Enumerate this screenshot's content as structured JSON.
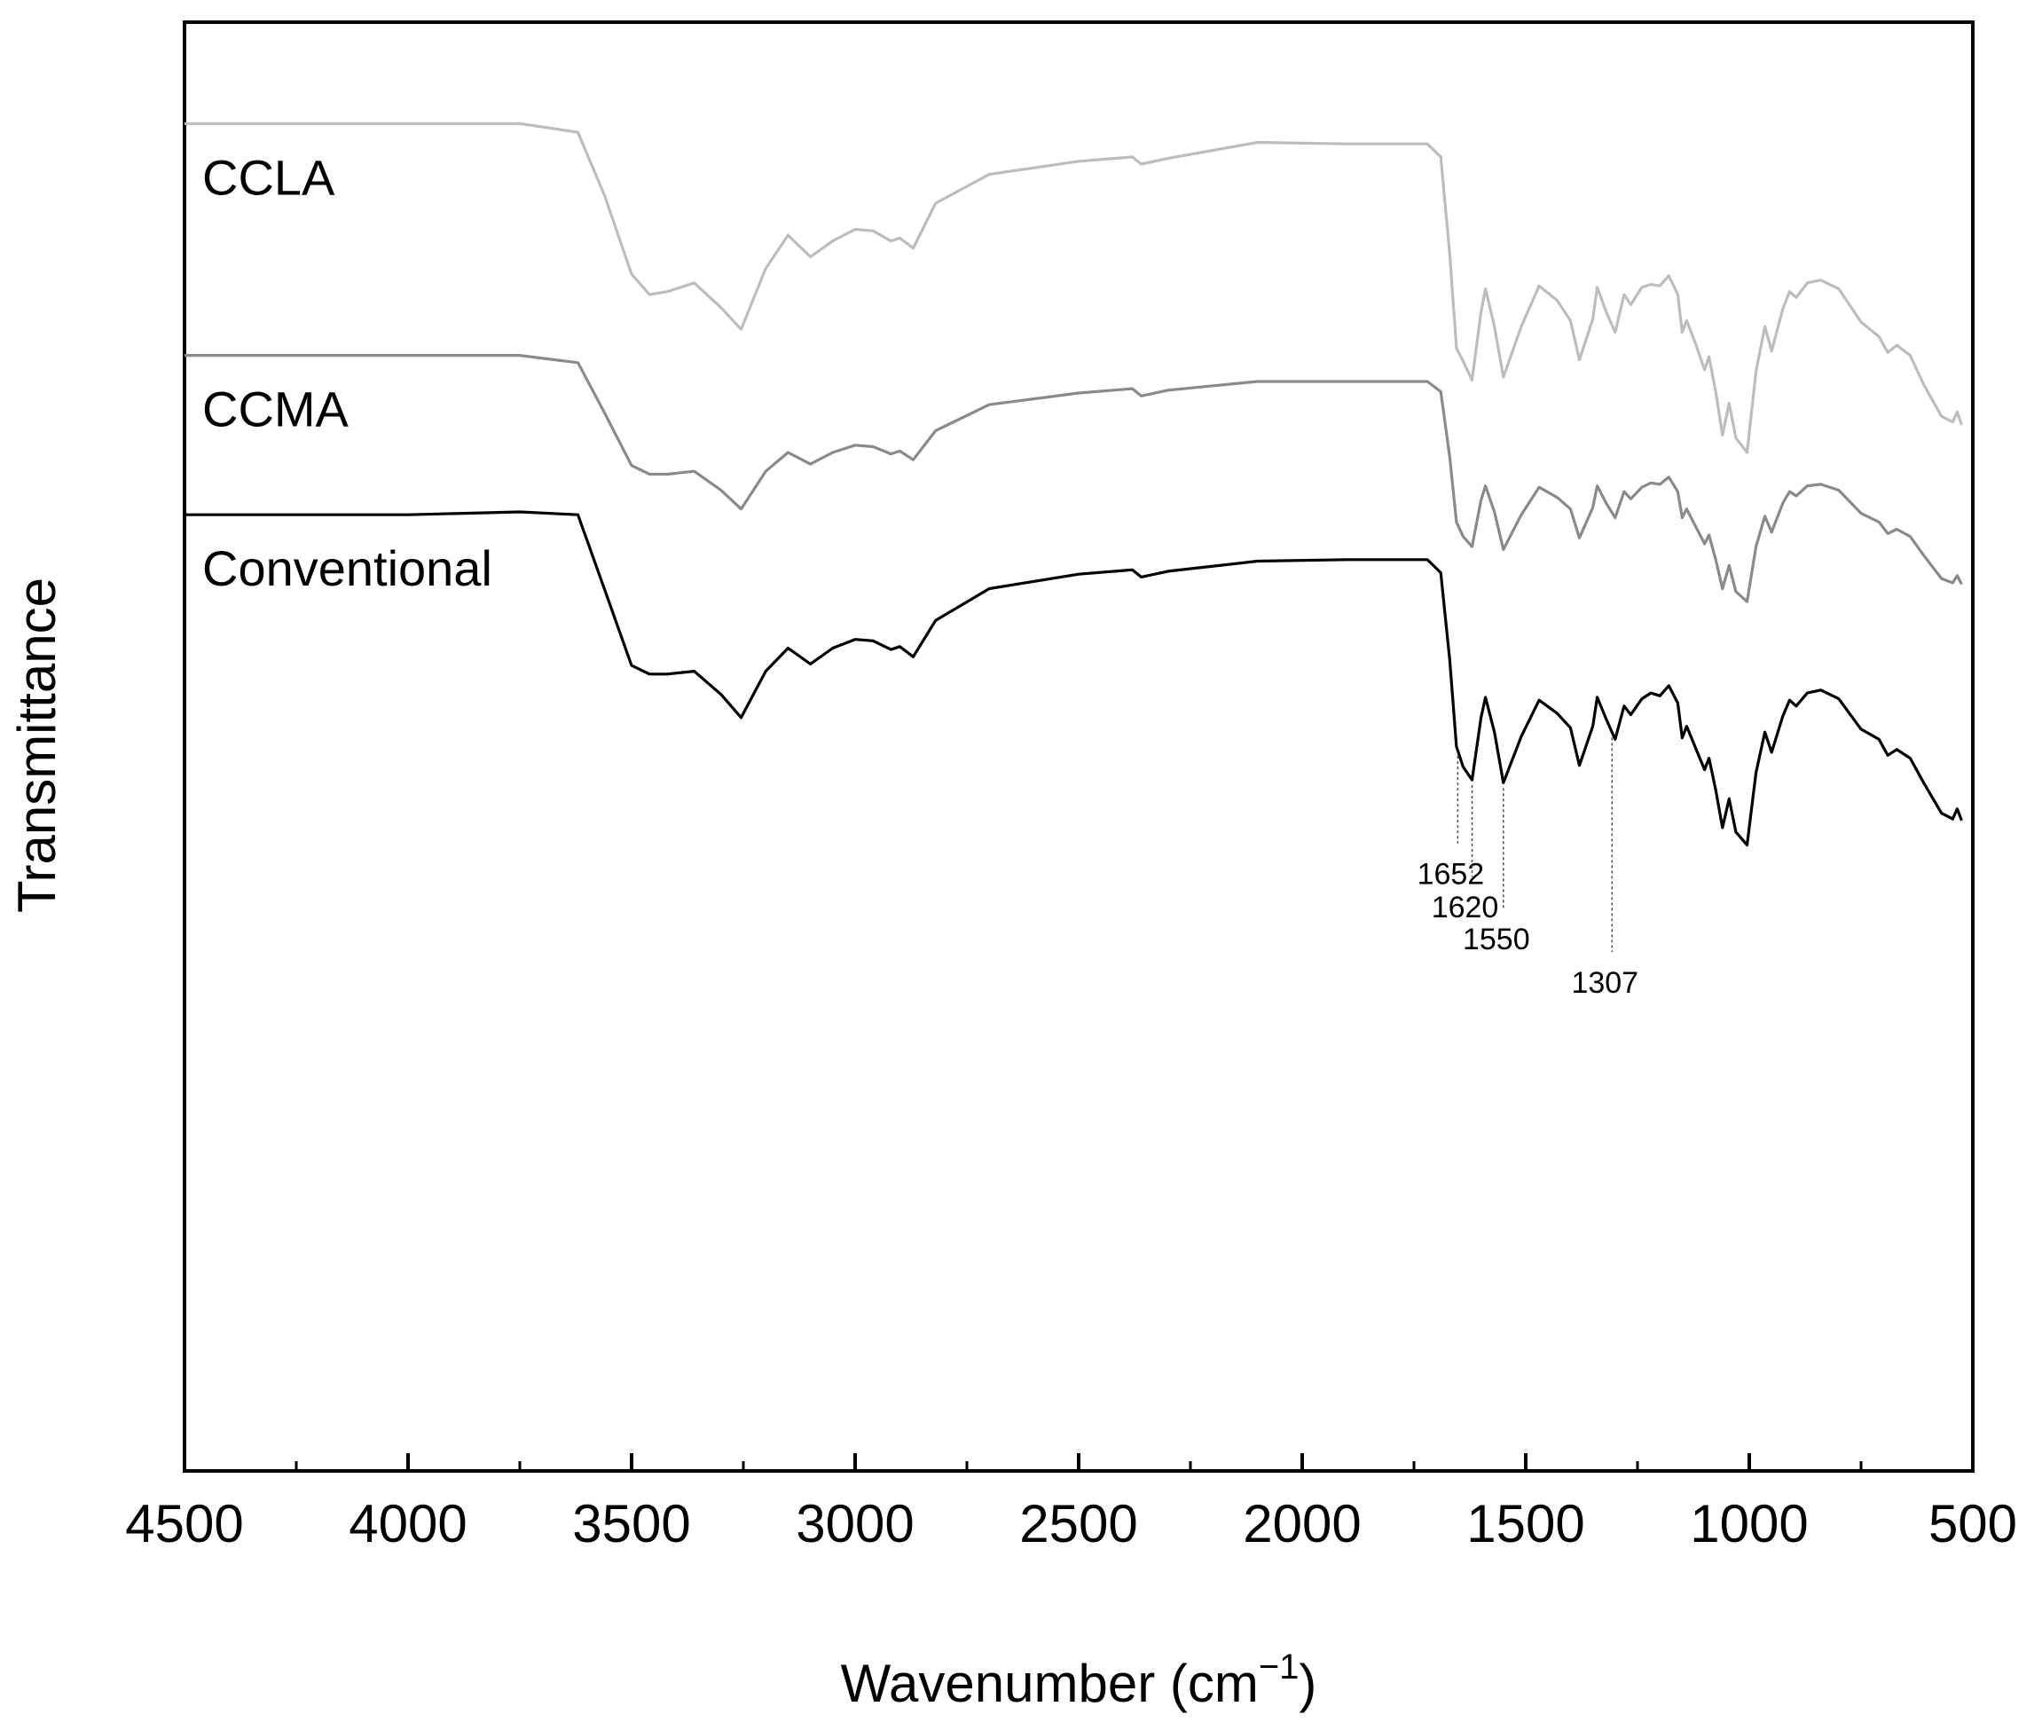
{
  "chart_data": {
    "type": "line",
    "xlabel": "Wavenumber (cm",
    "xlabel_superscript": "−1",
    "xlabel_close": ")",
    "ylabel": "Transmittance",
    "xlim": [
      4500,
      500
    ],
    "x_reversed": true,
    "x_ticks": [
      4500,
      4000,
      3500,
      3000,
      2500,
      2000,
      1500,
      1000,
      500
    ],
    "x_tick_labels": [
      "4500",
      "4000",
      "3500",
      "3000",
      "2500",
      "2000",
      "1500",
      "1000",
      "500"
    ],
    "y_ticks_shown": false,
    "grid": false,
    "legend": "inline labels",
    "ylim": [
      0,
      1
    ],
    "series": [
      {
        "name": "CCLA",
        "color": "#bdbdbd",
        "points": [
          [
            4500,
            0.93
          ],
          [
            4000,
            0.93
          ],
          [
            3750,
            0.93
          ],
          [
            3620,
            0.924
          ],
          [
            3560,
            0.88
          ],
          [
            3500,
            0.826
          ],
          [
            3460,
            0.812
          ],
          [
            3420,
            0.814
          ],
          [
            3360,
            0.82
          ],
          [
            3300,
            0.803
          ],
          [
            3255,
            0.788
          ],
          [
            3200,
            0.83
          ],
          [
            3150,
            0.853
          ],
          [
            3100,
            0.838
          ],
          [
            3050,
            0.849
          ],
          [
            3000,
            0.857
          ],
          [
            2960,
            0.856
          ],
          [
            2920,
            0.849
          ],
          [
            2900,
            0.851
          ],
          [
            2870,
            0.844
          ],
          [
            2820,
            0.875
          ],
          [
            2700,
            0.895
          ],
          [
            2500,
            0.904
          ],
          [
            2380,
            0.907
          ],
          [
            2360,
            0.902
          ],
          [
            2300,
            0.906
          ],
          [
            2100,
            0.917
          ],
          [
            1900,
            0.916
          ],
          [
            1720,
            0.916
          ],
          [
            1690,
            0.907
          ],
          [
            1670,
            0.84
          ],
          [
            1655,
            0.775
          ],
          [
            1640,
            0.766
          ],
          [
            1620,
            0.753
          ],
          [
            1600,
            0.8
          ],
          [
            1590,
            0.816
          ],
          [
            1570,
            0.79
          ],
          [
            1550,
            0.755
          ],
          [
            1510,
            0.79
          ],
          [
            1470,
            0.818
          ],
          [
            1430,
            0.808
          ],
          [
            1400,
            0.794
          ],
          [
            1380,
            0.767
          ],
          [
            1350,
            0.795
          ],
          [
            1340,
            0.817
          ],
          [
            1320,
            0.8
          ],
          [
            1300,
            0.786
          ],
          [
            1280,
            0.812
          ],
          [
            1265,
            0.805
          ],
          [
            1240,
            0.817
          ],
          [
            1220,
            0.819
          ],
          [
            1200,
            0.818
          ],
          [
            1180,
            0.825
          ],
          [
            1160,
            0.812
          ],
          [
            1150,
            0.786
          ],
          [
            1140,
            0.794
          ],
          [
            1120,
            0.778
          ],
          [
            1100,
            0.76
          ],
          [
            1090,
            0.769
          ],
          [
            1075,
            0.745
          ],
          [
            1060,
            0.715
          ],
          [
            1045,
            0.737
          ],
          [
            1030,
            0.713
          ],
          [
            1005,
            0.703
          ],
          [
            985,
            0.759
          ],
          [
            965,
            0.79
          ],
          [
            950,
            0.773
          ],
          [
            925,
            0.802
          ],
          [
            910,
            0.814
          ],
          [
            895,
            0.81
          ],
          [
            870,
            0.82
          ],
          [
            840,
            0.822
          ],
          [
            800,
            0.816
          ],
          [
            750,
            0.793
          ],
          [
            710,
            0.783
          ],
          [
            690,
            0.772
          ],
          [
            670,
            0.777
          ],
          [
            640,
            0.77
          ],
          [
            610,
            0.75
          ],
          [
            570,
            0.728
          ],
          [
            545,
            0.724
          ],
          [
            535,
            0.731
          ],
          [
            525,
            0.722
          ]
        ]
      },
      {
        "name": "CCMA",
        "color": "#8a8a8a",
        "points": [
          [
            4500,
            0.77
          ],
          [
            4000,
            0.77
          ],
          [
            3750,
            0.77
          ],
          [
            3620,
            0.765
          ],
          [
            3560,
            0.73
          ],
          [
            3500,
            0.694
          ],
          [
            3460,
            0.688
          ],
          [
            3420,
            0.688
          ],
          [
            3360,
            0.69
          ],
          [
            3300,
            0.677
          ],
          [
            3255,
            0.664
          ],
          [
            3200,
            0.69
          ],
          [
            3150,
            0.703
          ],
          [
            3100,
            0.695
          ],
          [
            3050,
            0.703
          ],
          [
            3000,
            0.708
          ],
          [
            2960,
            0.707
          ],
          [
            2920,
            0.702
          ],
          [
            2900,
            0.704
          ],
          [
            2870,
            0.698
          ],
          [
            2820,
            0.718
          ],
          [
            2700,
            0.736
          ],
          [
            2500,
            0.744
          ],
          [
            2380,
            0.747
          ],
          [
            2360,
            0.742
          ],
          [
            2300,
            0.746
          ],
          [
            2100,
            0.752
          ],
          [
            1900,
            0.752
          ],
          [
            1720,
            0.752
          ],
          [
            1690,
            0.745
          ],
          [
            1670,
            0.7
          ],
          [
            1655,
            0.655
          ],
          [
            1640,
            0.645
          ],
          [
            1620,
            0.638
          ],
          [
            1600,
            0.67
          ],
          [
            1590,
            0.68
          ],
          [
            1570,
            0.662
          ],
          [
            1550,
            0.636
          ],
          [
            1510,
            0.66
          ],
          [
            1470,
            0.679
          ],
          [
            1430,
            0.672
          ],
          [
            1400,
            0.664
          ],
          [
            1380,
            0.644
          ],
          [
            1350,
            0.665
          ],
          [
            1340,
            0.68
          ],
          [
            1320,
            0.668
          ],
          [
            1300,
            0.658
          ],
          [
            1280,
            0.676
          ],
          [
            1265,
            0.671
          ],
          [
            1240,
            0.679
          ],
          [
            1220,
            0.682
          ],
          [
            1200,
            0.681
          ],
          [
            1180,
            0.686
          ],
          [
            1160,
            0.676
          ],
          [
            1150,
            0.658
          ],
          [
            1140,
            0.664
          ],
          [
            1120,
            0.652
          ],
          [
            1100,
            0.64
          ],
          [
            1090,
            0.646
          ],
          [
            1075,
            0.629
          ],
          [
            1060,
            0.609
          ],
          [
            1045,
            0.625
          ],
          [
            1030,
            0.607
          ],
          [
            1005,
            0.6
          ],
          [
            985,
            0.638
          ],
          [
            965,
            0.659
          ],
          [
            950,
            0.648
          ],
          [
            925,
            0.668
          ],
          [
            910,
            0.676
          ],
          [
            895,
            0.673
          ],
          [
            870,
            0.68
          ],
          [
            840,
            0.681
          ],
          [
            800,
            0.677
          ],
          [
            750,
            0.661
          ],
          [
            710,
            0.655
          ],
          [
            690,
            0.647
          ],
          [
            670,
            0.65
          ],
          [
            640,
            0.645
          ],
          [
            610,
            0.632
          ],
          [
            570,
            0.616
          ],
          [
            545,
            0.613
          ],
          [
            535,
            0.618
          ],
          [
            525,
            0.612
          ]
        ]
      },
      {
        "name": "Conventional",
        "color": "#000000",
        "points": [
          [
            4500,
            0.66
          ],
          [
            4000,
            0.66
          ],
          [
            3750,
            0.662
          ],
          [
            3620,
            0.66
          ],
          [
            3560,
            0.608
          ],
          [
            3500,
            0.556
          ],
          [
            3460,
            0.55
          ],
          [
            3420,
            0.55
          ],
          [
            3360,
            0.552
          ],
          [
            3300,
            0.536
          ],
          [
            3255,
            0.52
          ],
          [
            3200,
            0.552
          ],
          [
            3150,
            0.568
          ],
          [
            3100,
            0.557
          ],
          [
            3050,
            0.568
          ],
          [
            3000,
            0.574
          ],
          [
            2960,
            0.573
          ],
          [
            2920,
            0.567
          ],
          [
            2900,
            0.569
          ],
          [
            2870,
            0.562
          ],
          [
            2820,
            0.587
          ],
          [
            2700,
            0.609
          ],
          [
            2500,
            0.619
          ],
          [
            2380,
            0.622
          ],
          [
            2360,
            0.617
          ],
          [
            2300,
            0.621
          ],
          [
            2100,
            0.628
          ],
          [
            1900,
            0.629
          ],
          [
            1720,
            0.629
          ],
          [
            1690,
            0.62
          ],
          [
            1670,
            0.56
          ],
          [
            1655,
            0.5
          ],
          [
            1640,
            0.486
          ],
          [
            1620,
            0.477
          ],
          [
            1600,
            0.52
          ],
          [
            1590,
            0.534
          ],
          [
            1570,
            0.51
          ],
          [
            1550,
            0.475
          ],
          [
            1510,
            0.507
          ],
          [
            1470,
            0.532
          ],
          [
            1430,
            0.523
          ],
          [
            1400,
            0.513
          ],
          [
            1380,
            0.487
          ],
          [
            1350,
            0.514
          ],
          [
            1340,
            0.534
          ],
          [
            1320,
            0.519
          ],
          [
            1300,
            0.505
          ],
          [
            1280,
            0.528
          ],
          [
            1265,
            0.522
          ],
          [
            1240,
            0.533
          ],
          [
            1220,
            0.537
          ],
          [
            1200,
            0.535
          ],
          [
            1180,
            0.542
          ],
          [
            1160,
            0.53
          ],
          [
            1150,
            0.506
          ],
          [
            1140,
            0.514
          ],
          [
            1120,
            0.499
          ],
          [
            1100,
            0.484
          ],
          [
            1090,
            0.492
          ],
          [
            1075,
            0.47
          ],
          [
            1060,
            0.444
          ],
          [
            1045,
            0.464
          ],
          [
            1030,
            0.441
          ],
          [
            1005,
            0.432
          ],
          [
            985,
            0.482
          ],
          [
            965,
            0.51
          ],
          [
            950,
            0.496
          ],
          [
            925,
            0.521
          ],
          [
            910,
            0.532
          ],
          [
            895,
            0.528
          ],
          [
            870,
            0.537
          ],
          [
            840,
            0.539
          ],
          [
            800,
            0.533
          ],
          [
            750,
            0.512
          ],
          [
            710,
            0.505
          ],
          [
            690,
            0.494
          ],
          [
            670,
            0.498
          ],
          [
            640,
            0.492
          ],
          [
            610,
            0.475
          ],
          [
            570,
            0.454
          ],
          [
            545,
            0.45
          ],
          [
            535,
            0.457
          ],
          [
            525,
            0.449
          ]
        ]
      }
    ],
    "annotations": [
      {
        "label": "1652",
        "x": 1652,
        "series": "Conventional",
        "label_level": 0.405
      },
      {
        "label": "1620",
        "x": 1620,
        "series": "Conventional",
        "label_level": 0.382
      },
      {
        "label": "1550",
        "x": 1550,
        "series": "Conventional",
        "label_level": 0.36
      },
      {
        "label": "1307",
        "x": 1307,
        "series": "Conventional",
        "label_level": 0.33
      }
    ]
  }
}
